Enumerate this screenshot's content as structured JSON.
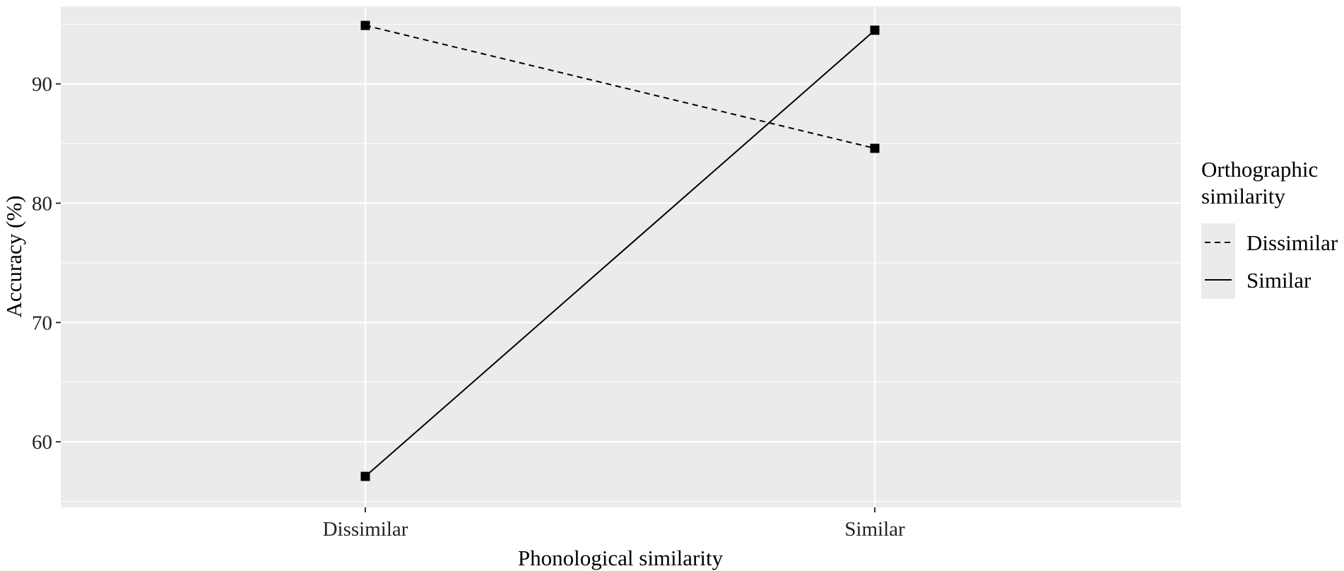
{
  "chart_data": {
    "type": "line",
    "title": "",
    "xlabel": "Phonological similarity",
    "ylabel": "Accuracy (%)",
    "categories": [
      "Dissimilar",
      "Similar"
    ],
    "ylim": [
      54.5,
      96.5
    ],
    "yticks": [
      60,
      70,
      80,
      90
    ],
    "grid": true,
    "legend_position": "right",
    "legend_title": [
      "Orthographic",
      "similarity"
    ],
    "series": [
      {
        "name": "Dissimilar",
        "linestyle": "dashed",
        "marker": "square",
        "values": [
          94.9,
          84.6
        ]
      },
      {
        "name": "Similar",
        "linestyle": "solid",
        "marker": "square",
        "values": [
          57.1,
          94.5
        ]
      }
    ],
    "colors": {
      "panel": "#ebebeb",
      "grid": "#ffffff",
      "line": "#000000"
    }
  }
}
